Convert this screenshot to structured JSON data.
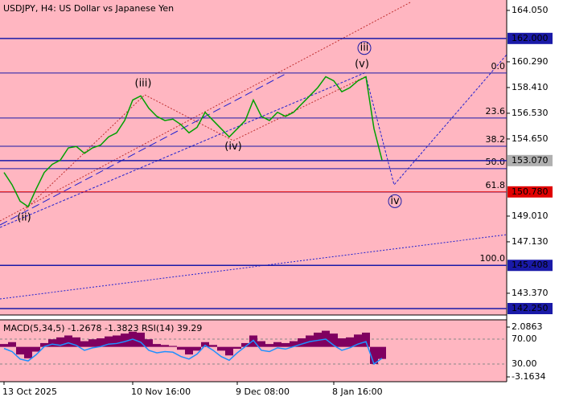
{
  "chart_data": {
    "type": "line",
    "title": "USDJPY, H4:  US Dollar vs Japanese Yen",
    "categories": [
      "13 Oct 2025",
      null,
      null,
      null,
      null,
      null,
      null,
      null,
      null,
      null,
      null,
      null,
      null,
      null,
      null,
      null,
      "10 Nov 16:00",
      null,
      null,
      null,
      null,
      null,
      null,
      null,
      null,
      null,
      null,
      null,
      null,
      "9 Dec 08:00",
      null,
      null,
      null,
      null,
      null,
      null,
      null,
      null,
      null,
      null,
      null,
      "8 Jan 16:00",
      null,
      null,
      null,
      null,
      null,
      null
    ],
    "series": [
      {
        "name": "USDJPY",
        "color": "#00a000",
        "values": [
          152.2,
          151.3,
          150.1,
          149.7,
          151.0,
          152.2,
          152.8,
          153.1,
          154.0,
          154.1,
          153.6,
          154.0,
          154.2,
          154.8,
          155.1,
          156.0,
          157.5,
          157.8,
          156.9,
          156.3,
          156.0,
          156.1,
          155.7,
          155.1,
          155.5,
          156.6,
          156.0,
          155.4,
          154.8,
          155.4,
          156.0,
          157.5,
          156.3,
          156.0,
          156.6,
          156.3,
          156.6,
          157.2,
          157.8,
          158.4,
          159.2,
          158.9,
          158.1,
          158.4,
          158.9,
          159.2,
          155.4,
          153.1
        ]
      }
    ],
    "ylim": [
      141.78,
      164.81
    ],
    "yticks": [
      {
        "value": 164.05,
        "label": "164.050"
      },
      {
        "value": 160.29,
        "label": "160.290"
      },
      {
        "value": 158.41,
        "label": "158.410"
      },
      {
        "value": 156.53,
        "label": "156.530"
      },
      {
        "value": 154.65,
        "label": "154.650"
      },
      {
        "value": 149.01,
        "label": "149.010"
      },
      {
        "value": 147.13,
        "label": "147.130"
      },
      {
        "value": 143.37,
        "label": "143.370"
      }
    ],
    "price_labels": [
      {
        "value": 162,
        "label": "162.000",
        "color": "#1a1aa8"
      },
      {
        "value": 153.07,
        "label": "153.070",
        "color": "#b0b0b0"
      },
      {
        "value": 150.78,
        "label": "150.780",
        "color": "#e00000"
      },
      {
        "value": 145.408,
        "label": "145.408",
        "color": "#1a1aa8"
      },
      {
        "value": 142.25,
        "label": "142.250",
        "color": "#1a1aa8"
      }
    ],
    "fib_levels": [
      {
        "label": "0.0",
        "value": 159.47
      },
      {
        "label": "23.6",
        "value": 156.18
      },
      {
        "label": "38.2",
        "value": 154.12
      },
      {
        "label": "50.0",
        "value": 152.48
      },
      {
        "label": "61.8",
        "value": 150.77
      },
      {
        "label": "100.0",
        "value": 145.41
      }
    ],
    "wave_labels": [
      {
        "label": "(ii)",
        "x": 2.5,
        "y": 148.9,
        "color": "#c02020"
      },
      {
        "label": "(iii)",
        "x": 17.3,
        "y": 158.7,
        "color": "#c02020"
      },
      {
        "label": "(iv)",
        "x": 28.5,
        "y": 154.1,
        "color": "#c02020"
      },
      {
        "label": "(v)",
        "x": 44.5,
        "y": 160.1,
        "color": "#c02020"
      },
      {
        "label": "iii",
        "x": 44.8,
        "y": 161.3,
        "color": "#1a1aa8"
      },
      {
        "label": "iv",
        "x": 48.6,
        "y": 150.1,
        "color": "#1a1aa8"
      }
    ],
    "indicator": {
      "title": "MACD(5,34,5) -1.2678 -1.3823 RSI(14) 39.29",
      "macd": {
        "name": "MACD",
        "color": "#800060",
        "axis": "y2",
        "values": [
          0.3,
          0.5,
          -0.8,
          -1.2,
          -0.5,
          0.4,
          0.8,
          1.0,
          1.2,
          1.0,
          0.6,
          0.8,
          0.9,
          1.1,
          1.2,
          1.4,
          1.6,
          1.5,
          0.8,
          0.3,
          0.2,
          0.1,
          -0.3,
          -0.8,
          -0.4,
          0.5,
          0.2,
          -0.4,
          -0.9,
          -0.2,
          0.4,
          1.2,
          0.6,
          0.3,
          0.5,
          0.4,
          0.6,
          0.9,
          1.2,
          1.5,
          1.7,
          1.4,
          0.9,
          1.0,
          1.3,
          1.5,
          -1.8,
          -1.27
        ]
      },
      "rsi": {
        "name": "RSI",
        "color": "#1e90ff",
        "values": [
          55,
          50,
          38,
          35,
          45,
          58,
          62,
          60,
          64,
          60,
          52,
          56,
          58,
          62,
          63,
          66,
          70,
          65,
          52,
          48,
          50,
          49,
          42,
          38,
          46,
          60,
          52,
          42,
          36,
          48,
          58,
          68,
          52,
          50,
          56,
          54,
          58,
          62,
          66,
          68,
          70,
          60,
          52,
          56,
          62,
          66,
          30,
          39.29
        ]
      },
      "ylim": [
        1.6,
        101
      ],
      "yticks": [
        {
          "value": 70,
          "label": "70.00"
        },
        {
          "value": 30,
          "label": "30.00"
        }
      ],
      "y2lim": [
        -3.67,
        2.85
      ],
      "y2ticks": [
        2.0863,
        -3.1634
      ]
    }
  }
}
